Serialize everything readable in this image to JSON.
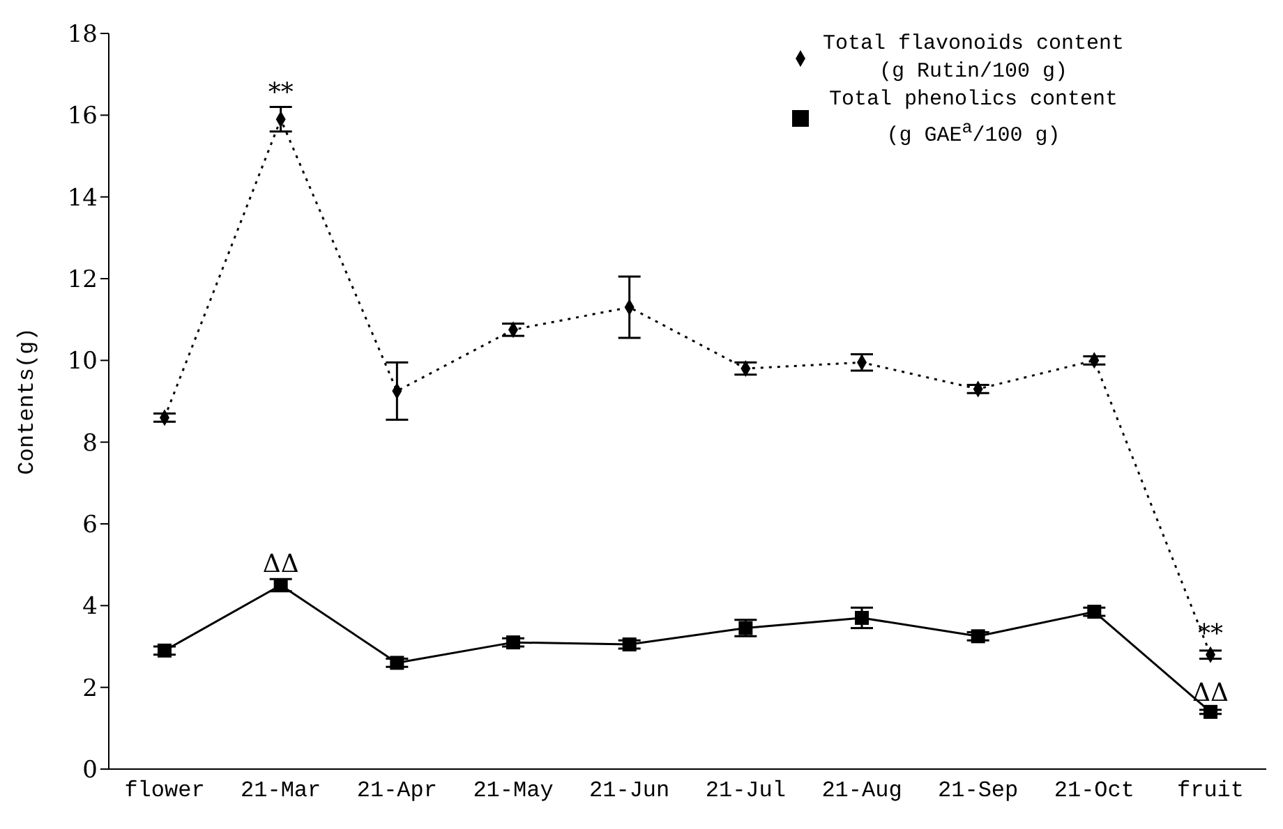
{
  "chart_data": {
    "type": "line",
    "ylabel": "Contents(g)",
    "categories": [
      "flower",
      "21-Mar",
      "21-Apr",
      "21-May",
      "21-Jun",
      "21-Jul",
      "21-Aug",
      "21-Sep",
      "21-Oct",
      "fruit"
    ],
    "series": [
      {
        "name": "Total flavonoids content (g Rutin/100 g)",
        "color": "#000000",
        "marker": "diamond",
        "line_style": "dotted",
        "values": [
          8.6,
          15.9,
          9.25,
          10.75,
          11.3,
          9.8,
          9.95,
          9.3,
          10.0,
          2.8
        ],
        "errors": [
          0.1,
          0.3,
          0.7,
          0.15,
          0.75,
          0.15,
          0.2,
          0.1,
          0.1,
          0.1
        ]
      },
      {
        "name": "Total phenolics content (g GAE$^{a}$/100 g)",
        "color": "#000000",
        "marker": "square",
        "line_style": "solid",
        "values": [
          2.9,
          4.5,
          2.6,
          3.1,
          3.05,
          3.45,
          3.7,
          3.25,
          3.85,
          1.4
        ],
        "errors": [
          0.1,
          0.15,
          0.1,
          0.1,
          0.1,
          0.2,
          0.25,
          0.1,
          0.1,
          0.05
        ]
      }
    ],
    "ylim": [
      0,
      18
    ],
    "yticks": [
      0,
      2,
      4,
      6,
      8,
      10,
      12,
      14,
      16,
      18
    ],
    "grid": false,
    "legend": "top right",
    "annotations": [
      {
        "text": "**",
        "x": "21-Mar",
        "y": 16.2
      },
      {
        "text": "ΔΔ",
        "x": "21-Mar",
        "y": 4.65
      },
      {
        "text": "**",
        "x": "fruit",
        "y": 2.95
      },
      {
        "text": "ΔΔ",
        "x": "fruit",
        "y": 1.5
      }
    ]
  }
}
